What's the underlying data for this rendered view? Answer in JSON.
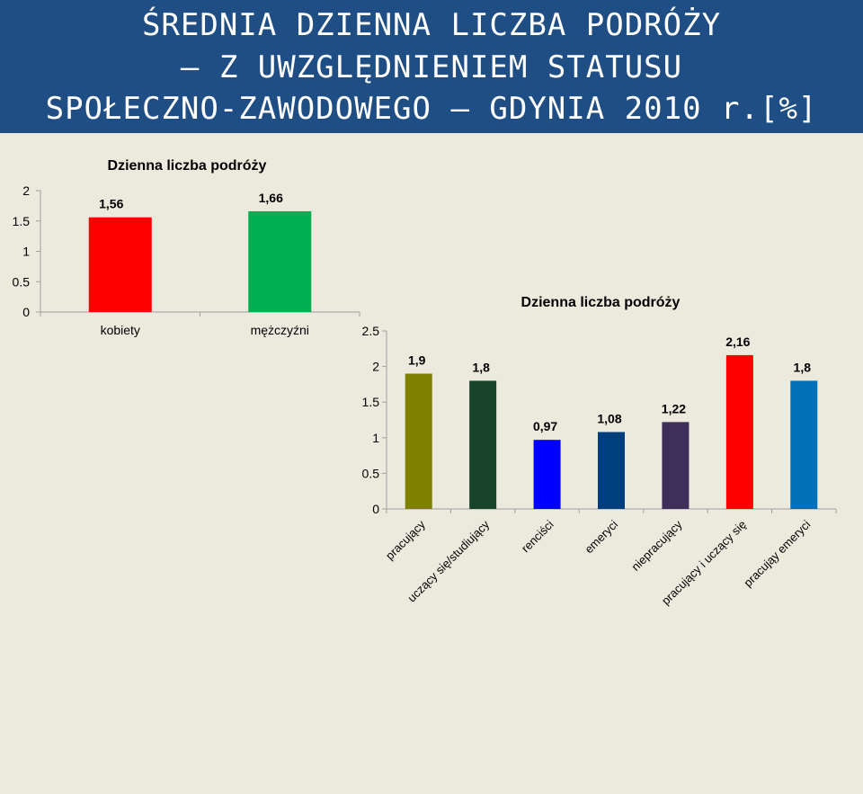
{
  "title": {
    "line1": "ŚREDNIA DZIENNA LICZBA PODRÓŻY",
    "line2": "– Z UWZGLĘDNIENIEM STATUSU",
    "line3": "SPOŁECZNO-ZAWODOWEGO – GDYNIA 2010 r.[%]"
  },
  "chart_data": [
    {
      "type": "bar",
      "title": "Dzienna liczba podróży",
      "categories": [
        "kobiety",
        "mężczyźni"
      ],
      "values": [
        1.56,
        1.66
      ],
      "value_labels": [
        "1,56",
        "1,66"
      ],
      "colors": [
        "#ff0000",
        "#00b050"
      ],
      "ylim": [
        0,
        2
      ],
      "yticks": [
        "0",
        "0.5",
        "1",
        "1.5",
        "2"
      ],
      "xlabel": "",
      "ylabel": "",
      "grid": false
    },
    {
      "type": "bar",
      "title": "Dzienna liczba podróży",
      "categories": [
        "pracujący",
        "uczący się/studiujący",
        "renciści",
        "emeryci",
        "niepracujący",
        "pracujący i uczący się",
        "pracująy emeryci"
      ],
      "values": [
        1.9,
        1.8,
        0.97,
        1.08,
        1.22,
        2.16,
        1.8
      ],
      "value_labels": [
        "1,9",
        "1,8",
        "0,97",
        "1,08",
        "1,22",
        "2,16",
        "1,8"
      ],
      "colors": [
        "#808000",
        "#17432a",
        "#0000ff",
        "#003e7e",
        "#3d2f59",
        "#ff0000",
        "#0070b8"
      ],
      "ylim": [
        0,
        2.5
      ],
      "yticks": [
        "0",
        "0.5",
        "1",
        "1.5",
        "2",
        "2.5"
      ],
      "xlabel": "",
      "ylabel": "",
      "grid": false
    }
  ]
}
